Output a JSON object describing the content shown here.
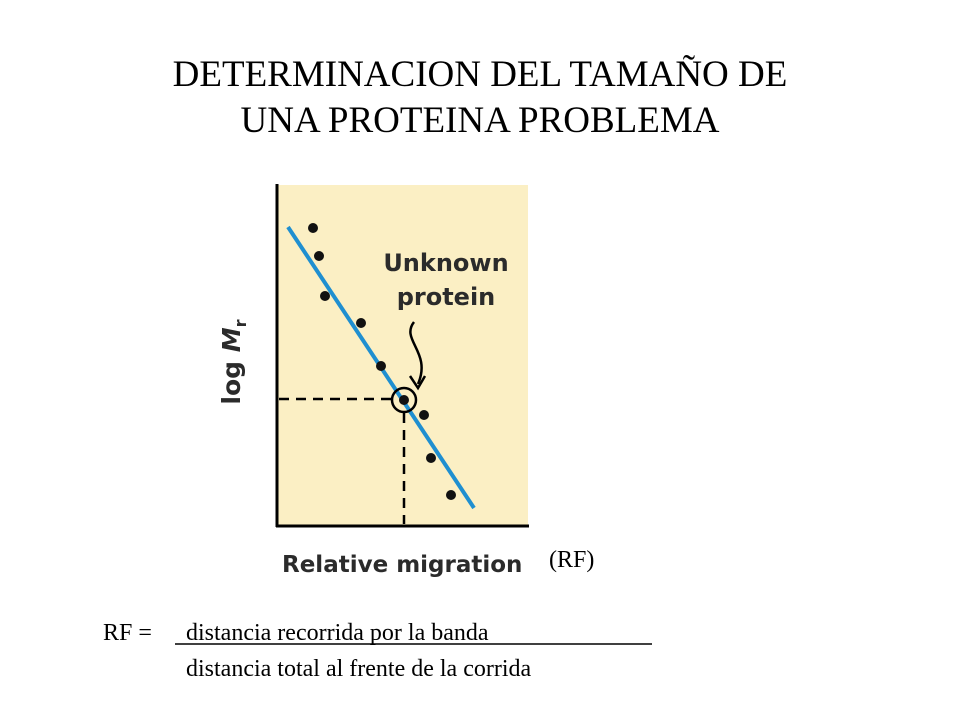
{
  "slide": {
    "title_lines": [
      "DETERMINACION DEL TAMAÑO DE",
      "UNA PROTEINA PROBLEMA"
    ],
    "figure": {
      "annotation_lines": [
        "Unknown",
        "protein"
      ],
      "y_axis_label": {
        "prefix": "log ",
        "symbol": "M",
        "subscript": "r"
      },
      "x_axis_label": "Relative migration",
      "x_axis_note": "(RF)"
    },
    "formula": {
      "lhs": "RF =",
      "numerator": "distancia recorrida por la banda",
      "denominator": "distancia total al frente de la corrida"
    }
  }
}
